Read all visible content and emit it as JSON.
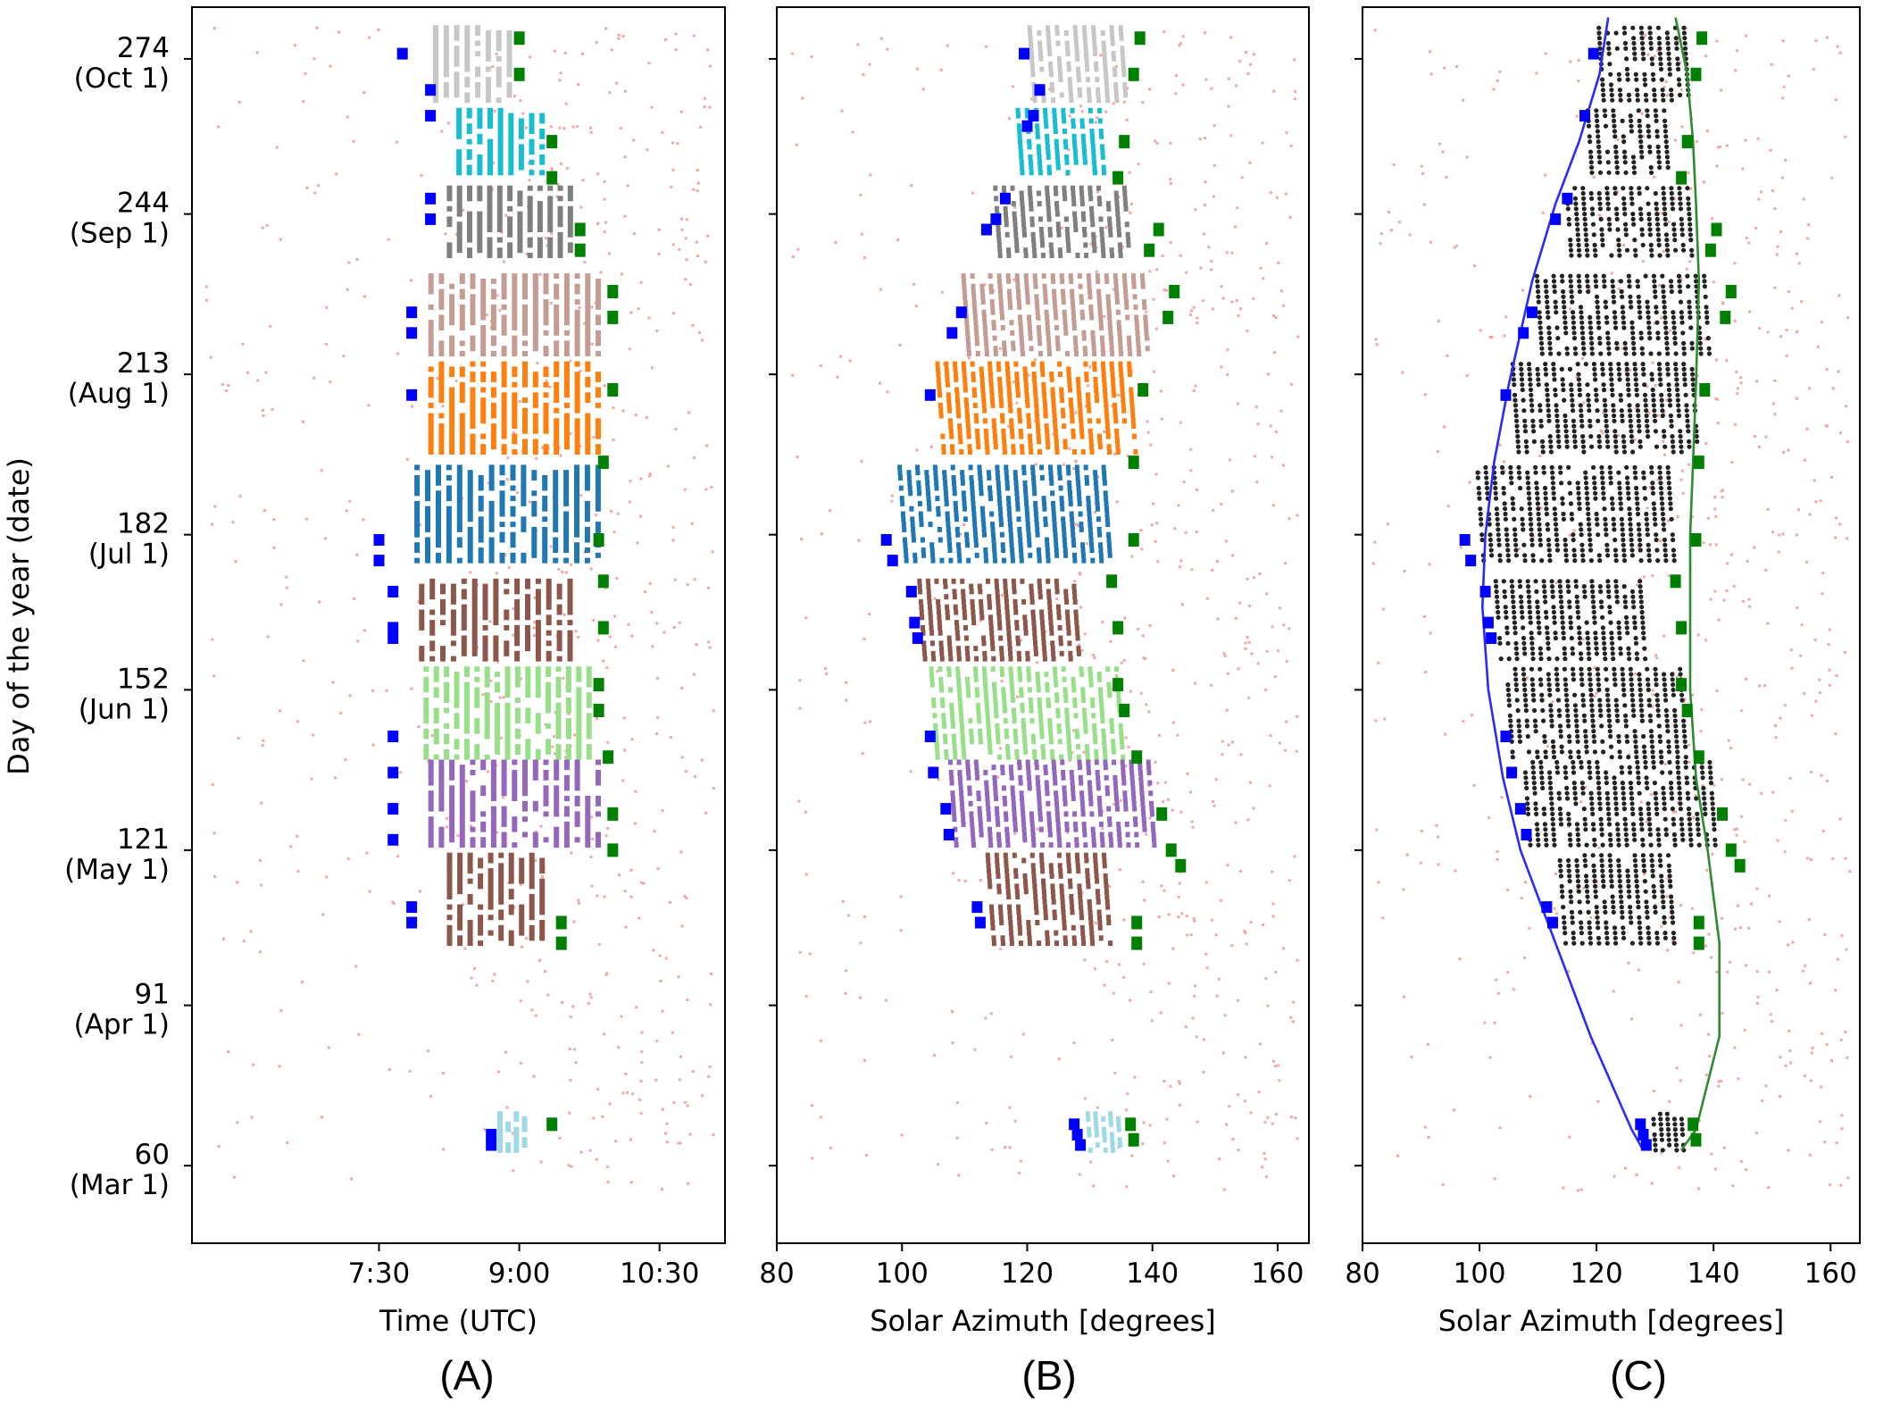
{
  "figure": {
    "shared_ylabel": "Day of the year (date)",
    "panel_letters": [
      "(A)",
      "(B)",
      "(C)"
    ]
  },
  "colors": {
    "morning_edge": "#0000ff",
    "evening_edge": "#008000",
    "background_points": "#f4a6a6",
    "panel_c_points": "#222222",
    "fit_min_line": "#2a2aff",
    "fit_max_line": "#2e8b2e"
  },
  "chart_data": [
    {
      "panel": "(A)",
      "type": "scatter",
      "xlabel": "Time (UTC)",
      "ylabel": "Day of the year (date)",
      "x_unit": "hours (UTC)",
      "xlim": [
        5.5,
        11.2
      ],
      "ylim": [
        45,
        284
      ],
      "x_ticks": [
        {
          "value": 7.5,
          "label": "7:30"
        },
        {
          "value": 9.0,
          "label": "9:00"
        },
        {
          "value": 10.5,
          "label": "10:30"
        }
      ],
      "y_ticks": [
        {
          "value": 274,
          "label": "274",
          "date": "(Oct 1)"
        },
        {
          "value": 244,
          "label": "244",
          "date": "(Sep 1)"
        },
        {
          "value": 213,
          "label": "213",
          "date": "(Aug 1)"
        },
        {
          "value": 182,
          "label": "182",
          "date": "(Jul 1)"
        },
        {
          "value": 152,
          "label": "152",
          "date": "(Jun 1)"
        },
        {
          "value": 121,
          "label": "121",
          "date": "(May 1)"
        },
        {
          "value": 91,
          "label": "91",
          "date": "(Apr 1)"
        },
        {
          "value": 60,
          "label": "60",
          "date": "(Mar 1)"
        }
      ],
      "clusters": [
        {
          "color": "#c7c7c7",
          "day_range": [
            266,
            280
          ],
          "x_start": 8.05,
          "x_end": 8.95
        },
        {
          "color": "#17becf",
          "day_range": [
            252,
            264
          ],
          "x_start": 8.3,
          "x_end": 9.3
        },
        {
          "color": "#7f7f7f",
          "day_range": [
            236,
            249
          ],
          "x_start": 8.2,
          "x_end": 9.6
        },
        {
          "color": "#c49c94",
          "day_range": [
            217,
            232
          ],
          "x_start": 8.0,
          "x_end": 9.9
        },
        {
          "color": "#ff7f0e",
          "day_range": [
            198,
            215
          ],
          "x_start": 8.0,
          "x_end": 9.9
        },
        {
          "color": "#1f77b4",
          "day_range": [
            177,
            195
          ],
          "x_start": 7.85,
          "x_end": 9.9
        },
        {
          "color": "#8c564b",
          "day_range": [
            158,
            173
          ],
          "x_start": 7.9,
          "x_end": 9.6
        },
        {
          "color": "#98df8a",
          "day_range": [
            139,
            156
          ],
          "x_start": 7.95,
          "x_end": 9.8
        },
        {
          "color": "#9467bd",
          "day_range": [
            122,
            138
          ],
          "x_start": 8.0,
          "x_end": 9.9
        },
        {
          "color": "#8c564b",
          "day_range": [
            103,
            120
          ],
          "x_start": 8.2,
          "x_end": 9.3
        },
        {
          "color": "#9edae5",
          "day_range": [
            63,
            70
          ],
          "x_start": 8.75,
          "x_end": 9.1
        }
      ],
      "morning_edge_points": [
        [
          7.75,
          275
        ],
        [
          8.05,
          268
        ],
        [
          8.05,
          263
        ],
        [
          8.05,
          247
        ],
        [
          8.05,
          243
        ],
        [
          7.85,
          225
        ],
        [
          7.85,
          221
        ],
        [
          7.85,
          209
        ],
        [
          7.5,
          181
        ],
        [
          7.5,
          177
        ],
        [
          7.65,
          171
        ],
        [
          7.65,
          164
        ],
        [
          7.65,
          162
        ],
        [
          7.65,
          143
        ],
        [
          7.65,
          136
        ],
        [
          7.65,
          129
        ],
        [
          7.65,
          123
        ],
        [
          7.85,
          110
        ],
        [
          7.85,
          107
        ],
        [
          8.7,
          66
        ],
        [
          8.7,
          64
        ]
      ],
      "evening_edge_points": [
        [
          9.0,
          278
        ],
        [
          9.0,
          271
        ],
        [
          9.35,
          258
        ],
        [
          9.35,
          251
        ],
        [
          9.65,
          241
        ],
        [
          9.65,
          237
        ],
        [
          10.0,
          229
        ],
        [
          10.0,
          224
        ],
        [
          10.0,
          210
        ],
        [
          9.9,
          196
        ],
        [
          9.85,
          181
        ],
        [
          9.9,
          173
        ],
        [
          9.9,
          164
        ],
        [
          9.85,
          153
        ],
        [
          9.85,
          148
        ],
        [
          9.95,
          139
        ],
        [
          10.0,
          128
        ],
        [
          10.0,
          121
        ],
        [
          9.45,
          107
        ],
        [
          9.45,
          103
        ],
        [
          9.35,
          68
        ]
      ]
    },
    {
      "panel": "(B)",
      "type": "scatter",
      "xlabel": "Solar Azimuth [degrees]",
      "x_unit": "degrees",
      "xlim": [
        80,
        165
      ],
      "ylim": [
        45,
        284
      ],
      "x_ticks": [
        {
          "value": 80,
          "label": "80"
        },
        {
          "value": 100,
          "label": "100"
        },
        {
          "value": 120,
          "label": "120"
        },
        {
          "value": 140,
          "label": "140"
        },
        {
          "value": 160,
          "label": "160"
        }
      ],
      "clusters": [
        {
          "color": "#c7c7c7",
          "day_range": [
            266,
            280
          ],
          "x_start": 120.5,
          "x_end": 136.5
        },
        {
          "color": "#17becf",
          "day_range": [
            252,
            264
          ],
          "x_start": 118.5,
          "x_end": 133.0
        },
        {
          "color": "#7f7f7f",
          "day_range": [
            236,
            249
          ],
          "x_start": 115.0,
          "x_end": 137.0
        },
        {
          "color": "#c49c94",
          "day_range": [
            217,
            232
          ],
          "x_start": 110.0,
          "x_end": 140.0
        },
        {
          "color": "#ff7f0e",
          "day_range": [
            198,
            215
          ],
          "x_start": 106.0,
          "x_end": 138.0
        },
        {
          "color": "#1f77b4",
          "day_range": [
            177,
            195
          ],
          "x_start": 100.0,
          "x_end": 134.0
        },
        {
          "color": "#8c564b",
          "day_range": [
            158,
            173
          ],
          "x_start": 103.0,
          "x_end": 129.0
        },
        {
          "color": "#98df8a",
          "day_range": [
            139,
            156
          ],
          "x_start": 105.0,
          "x_end": 136.0
        },
        {
          "color": "#9467bd",
          "day_range": [
            122,
            138
          ],
          "x_start": 108.0,
          "x_end": 141.0
        },
        {
          "color": "#8c564b",
          "day_range": [
            103,
            120
          ],
          "x_start": 114.0,
          "x_end": 134.0
        },
        {
          "color": "#9edae5",
          "day_range": [
            63,
            70
          ],
          "x_start": 129.5,
          "x_end": 135.5
        }
      ],
      "morning_edge_points": [
        [
          119.5,
          275
        ],
        [
          122.0,
          268
        ],
        [
          121.0,
          263
        ],
        [
          120.0,
          261
        ],
        [
          116.5,
          247
        ],
        [
          115.0,
          243
        ],
        [
          113.5,
          241
        ],
        [
          109.5,
          225
        ],
        [
          108.0,
          221
        ],
        [
          104.5,
          209
        ],
        [
          97.5,
          181
        ],
        [
          98.5,
          177
        ],
        [
          101.5,
          171
        ],
        [
          102.0,
          165
        ],
        [
          102.5,
          162
        ],
        [
          104.5,
          143
        ],
        [
          105.0,
          136
        ],
        [
          107.0,
          129
        ],
        [
          107.5,
          124
        ],
        [
          112.0,
          110
        ],
        [
          112.5,
          107
        ],
        [
          127.5,
          68
        ],
        [
          128.0,
          66
        ],
        [
          128.5,
          64
        ]
      ],
      "evening_edge_points": [
        [
          138.0,
          278
        ],
        [
          137.0,
          271
        ],
        [
          135.5,
          258
        ],
        [
          134.5,
          251
        ],
        [
          141.0,
          241
        ],
        [
          139.5,
          237
        ],
        [
          143.5,
          229
        ],
        [
          142.5,
          224
        ],
        [
          138.5,
          210
        ],
        [
          137.0,
          196
        ],
        [
          137.0,
          181
        ],
        [
          133.5,
          173
        ],
        [
          134.5,
          164
        ],
        [
          134.5,
          153
        ],
        [
          135.5,
          148
        ],
        [
          137.5,
          139
        ],
        [
          141.5,
          128
        ],
        [
          143.0,
          121
        ],
        [
          144.5,
          118
        ],
        [
          137.5,
          107
        ],
        [
          137.5,
          103
        ],
        [
          136.5,
          68
        ],
        [
          137.0,
          65
        ]
      ]
    },
    {
      "panel": "(C)",
      "type": "scatter",
      "xlabel": "Solar Azimuth [degrees]",
      "x_unit": "degrees",
      "xlim": [
        80,
        165
      ],
      "ylim": [
        45,
        284
      ],
      "x_ticks": [
        {
          "value": 80,
          "label": "80"
        },
        {
          "value": 100,
          "label": "100"
        },
        {
          "value": 120,
          "label": "120"
        },
        {
          "value": 140,
          "label": "140"
        },
        {
          "value": 160,
          "label": "160"
        }
      ],
      "fitted_min_curve": [
        [
          128,
          63
        ],
        [
          126,
          67
        ],
        [
          119,
          85
        ],
        [
          113,
          103
        ],
        [
          107,
          121
        ],
        [
          104,
          135
        ],
        [
          101.5,
          152
        ],
        [
          100.5,
          168
        ],
        [
          101,
          182
        ],
        [
          102.5,
          196
        ],
        [
          105,
          211
        ],
        [
          109,
          231
        ],
        [
          113,
          246
        ],
        [
          117,
          258
        ],
        [
          120.5,
          271
        ],
        [
          122,
          282
        ]
      ],
      "fitted_max_curve": [
        [
          134.5,
          63
        ],
        [
          137,
          67
        ],
        [
          141,
          85
        ],
        [
          141,
          103
        ],
        [
          139,
          121
        ],
        [
          137,
          135
        ],
        [
          136,
          152
        ],
        [
          136,
          168
        ],
        [
          136,
          182
        ],
        [
          136.5,
          196
        ],
        [
          137,
          211
        ],
        [
          137.5,
          231
        ],
        [
          137,
          246
        ],
        [
          136.5,
          258
        ],
        [
          135.5,
          271
        ],
        [
          133.5,
          282
        ]
      ],
      "morning_edge_points": [
        [
          119.5,
          275
        ],
        [
          118.0,
          263
        ],
        [
          115.0,
          247
        ],
        [
          113.0,
          243
        ],
        [
          109.0,
          225
        ],
        [
          107.5,
          221
        ],
        [
          104.5,
          209
        ],
        [
          97.5,
          181
        ],
        [
          98.5,
          177
        ],
        [
          101.0,
          171
        ],
        [
          101.5,
          165
        ],
        [
          102.0,
          162
        ],
        [
          104.5,
          143
        ],
        [
          105.5,
          136
        ],
        [
          107.0,
          129
        ],
        [
          108.0,
          124
        ],
        [
          111.5,
          110
        ],
        [
          112.5,
          107
        ],
        [
          127.5,
          68
        ],
        [
          128.0,
          66
        ],
        [
          128.5,
          64
        ]
      ],
      "evening_edge_points": [
        [
          138.0,
          278
        ],
        [
          137.0,
          271
        ],
        [
          135.5,
          258
        ],
        [
          134.5,
          251
        ],
        [
          140.5,
          241
        ],
        [
          139.5,
          237
        ],
        [
          143.0,
          229
        ],
        [
          142.0,
          224
        ],
        [
          138.5,
          210
        ],
        [
          137.5,
          196
        ],
        [
          137.0,
          181
        ],
        [
          133.5,
          173
        ],
        [
          134.5,
          164
        ],
        [
          134.5,
          153
        ],
        [
          135.5,
          148
        ],
        [
          137.5,
          139
        ],
        [
          141.5,
          128
        ],
        [
          143.0,
          121
        ],
        [
          144.5,
          118
        ],
        [
          137.5,
          107
        ],
        [
          137.5,
          103
        ],
        [
          136.5,
          68
        ],
        [
          137.0,
          65
        ]
      ]
    }
  ]
}
